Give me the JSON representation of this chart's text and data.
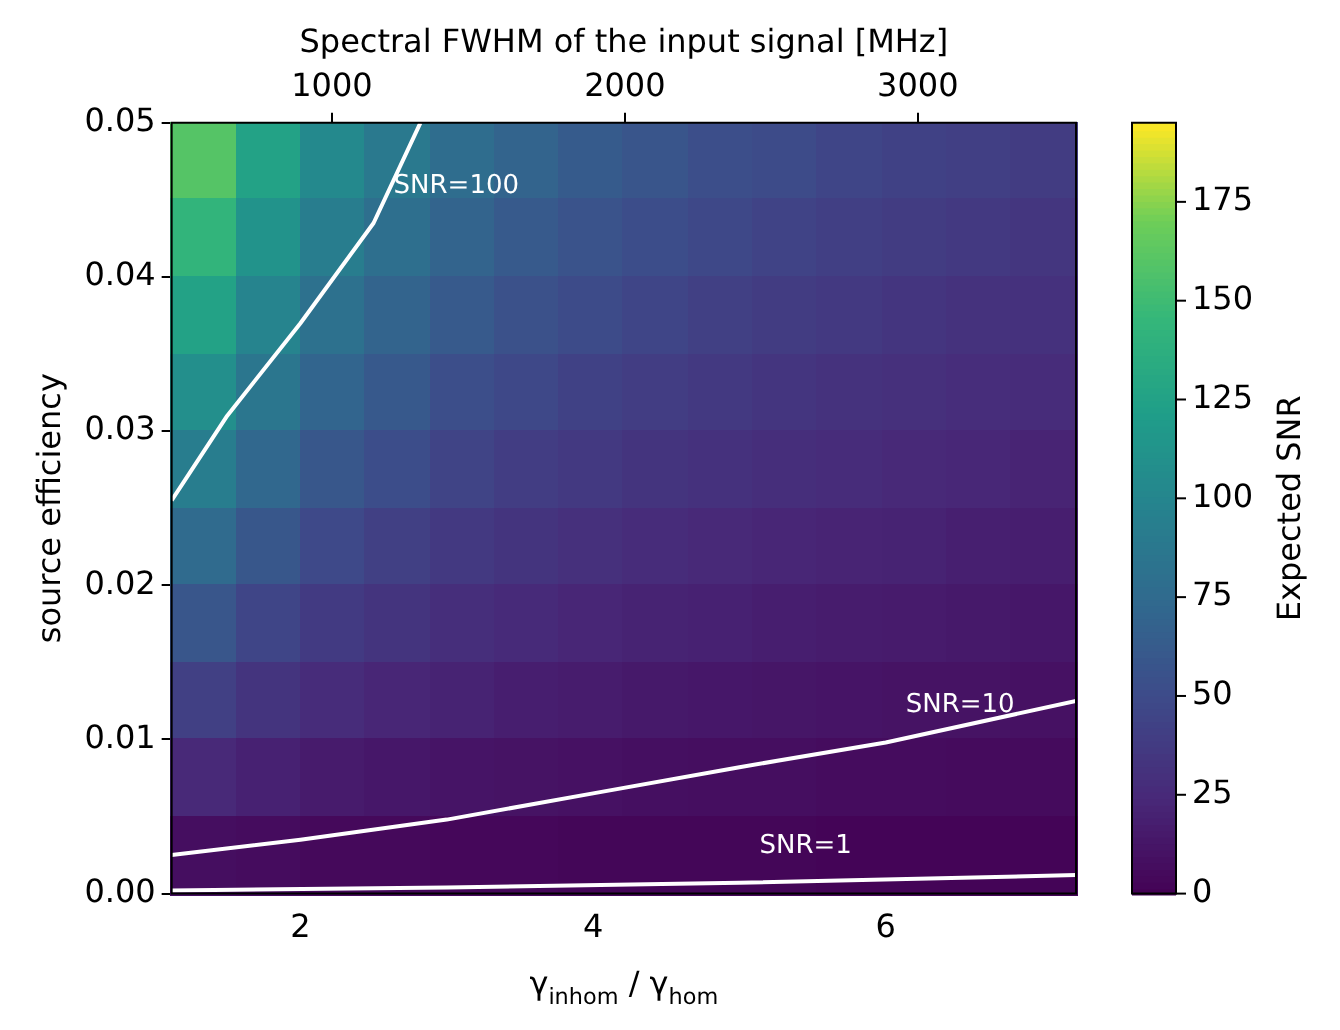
{
  "chart_data": {
    "type": "heatmap",
    "xlabel": "γ$_{inhom}$ / γ$_{hom}$",
    "ylabel": "source efficiency",
    "x2label": "Spectral FWHM of the input signal [MHz]",
    "clabel": "Expected SNR",
    "xlim": [
      1.12,
      7.3
    ],
    "xticks": [
      2,
      4,
      6
    ],
    "ylim": [
      0,
      0.05
    ],
    "yticks": [
      {
        "value": 0,
        "label": "0.00"
      },
      {
        "value": 0.01,
        "label": "0.01"
      },
      {
        "value": 0.02,
        "label": "0.02"
      },
      {
        "value": 0.03,
        "label": "0.03"
      },
      {
        "value": 0.04,
        "label": "0.04"
      },
      {
        "value": 0.05,
        "label": "0.05"
      }
    ],
    "x2lim": [
      453,
      3540
    ],
    "x2ticks": [
      1000,
      2000,
      3000
    ],
    "clim": [
      0,
      195
    ],
    "cticks": [
      0,
      25,
      50,
      75,
      100,
      125,
      150,
      175
    ],
    "cells": [
      [
        160,
        126,
        104,
        89,
        78,
        70,
        63,
        58,
        53,
        50,
        46,
        43,
        41,
        39
      ],
      [
        143,
        112,
        93,
        80,
        70,
        62,
        57,
        52,
        48,
        44,
        41,
        39,
        37,
        35
      ],
      [
        126,
        99,
        82,
        70,
        62,
        55,
        50,
        46,
        42,
        39,
        37,
        34,
        32,
        31
      ],
      [
        109,
        86,
        71,
        61,
        53,
        48,
        43,
        40,
        37,
        34,
        32,
        30,
        28,
        27
      ],
      [
        93,
        73,
        60,
        52,
        45,
        40,
        37,
        33,
        31,
        29,
        27,
        25,
        24,
        22
      ],
      [
        76,
        60,
        49,
        42,
        37,
        33,
        30,
        27,
        25,
        23,
        22,
        21,
        19,
        18
      ],
      [
        59,
        46,
        38,
        33,
        29,
        26,
        23,
        21,
        20,
        18,
        17,
        16,
        15,
        14
      ],
      [
        42,
        33,
        27,
        23,
        21,
        18,
        17,
        15,
        14,
        13,
        12,
        11,
        11,
        10
      ],
      [
        25,
        20,
        16,
        14,
        12,
        11,
        10,
        9,
        8,
        8,
        7,
        7,
        6,
        6
      ],
      [
        8,
        7,
        5,
        5,
        4,
        4,
        3,
        3,
        3,
        3,
        2,
        2,
        2,
        2
      ]
    ],
    "series": [
      {
        "type": "line",
        "name": "SNR=100",
        "color": "#ffffff",
        "x": [
          1.12,
          1.5,
          2,
          2.5,
          2.82
        ],
        "values": [
          0.0255,
          0.031,
          0.037,
          0.0435,
          0.05
        ]
      },
      {
        "type": "line",
        "name": "SNR=10",
        "color": "#ffffff",
        "x": [
          1.12,
          2,
          3,
          4,
          5,
          6,
          7.3
        ],
        "values": [
          0.0025,
          0.0035,
          0.0048,
          0.0065,
          0.0082,
          0.0098,
          0.0125
        ]
      },
      {
        "type": "line",
        "name": "SNR=1",
        "color": "#ffffff",
        "x": [
          1.12,
          3,
          5,
          7.3
        ],
        "values": [
          0.0002,
          0.0004,
          0.0007,
          0.0012
        ]
      }
    ],
    "grid": false,
    "legend": false
  }
}
